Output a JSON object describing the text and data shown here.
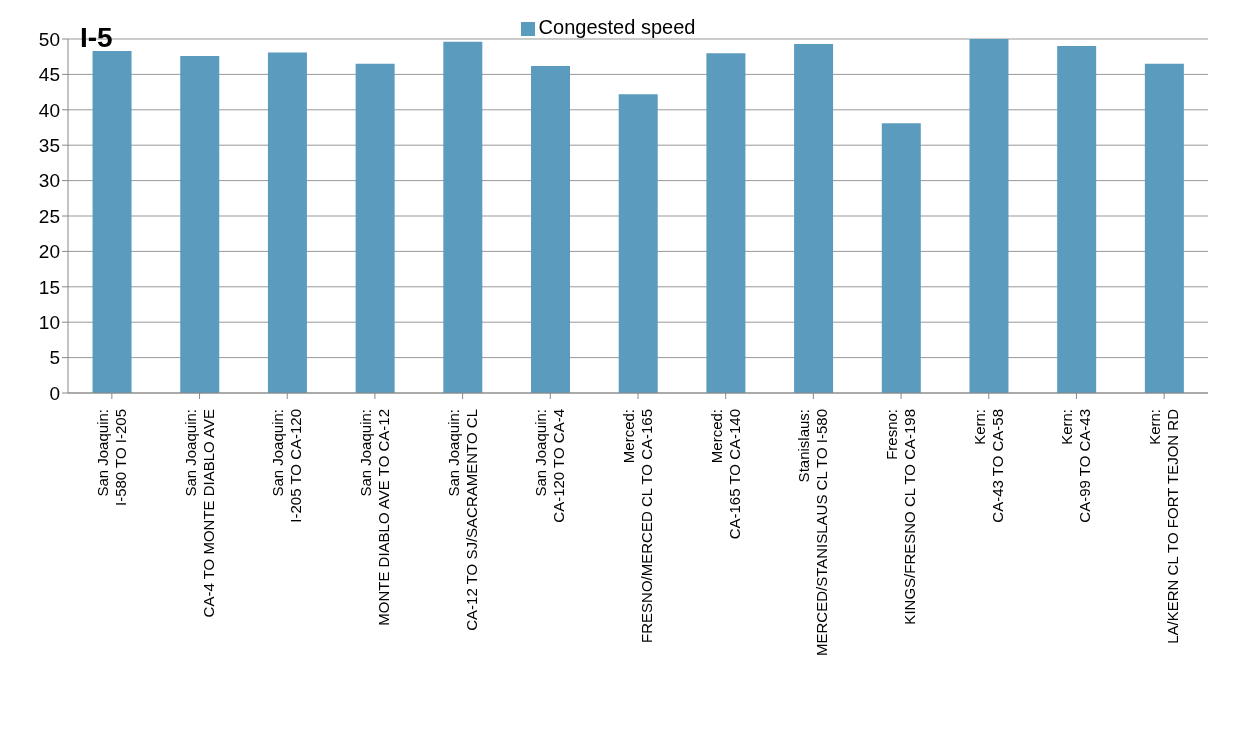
{
  "chart_data": {
    "type": "bar",
    "title": "I-5",
    "categories": [
      "San Joaquin:\nI-580 TO I-205",
      "San Joaquin:\nCA-4 TO MONTE DIABLO AVE",
      "San Joaquin:\nI-205 TO CA-120",
      "San Joaquin:\nMONTE DIABLO AVE  TO CA-12",
      "San Joaquin:\nCA-12 TO SJ/SACRAMENTO CL",
      "San Joaquin:\nCA-120 TO CA-4",
      "Merced:\nFRESNO/MERCED CL TO CA-165",
      "Merced:\nCA-165 TO CA-140",
      "Stanislaus:\nMERCED/STANISLAUS CL TO I-580",
      "Fresno:\nKINGS/FRESNO CL TO CA-198",
      "Kern:\nCA-43 TO CA-58",
      "Kern:\nCA-99 TO CA-43",
      "Kern:\nLA/KERN CL TO FORT TEJON RD"
    ],
    "series": [
      {
        "name": "Congested speed",
        "color": "#5b9bbe",
        "values": [
          48.3,
          47.6,
          48.1,
          46.5,
          49.6,
          46.2,
          42.2,
          48.0,
          49.3,
          38.1,
          50,
          49.0,
          46.5
        ]
      }
    ],
    "ylim": [
      0,
      50
    ],
    "yticks": [
      0,
      5,
      10,
      15,
      20,
      25,
      30,
      35,
      40,
      45,
      50
    ],
    "grid": "y",
    "legend": "top"
  }
}
